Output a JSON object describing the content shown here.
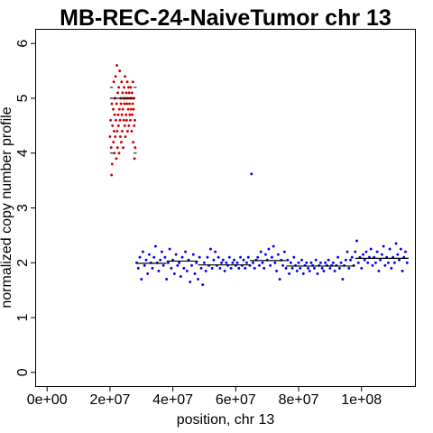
{
  "chart_data": {
    "type": "scatter",
    "title": "MB-REC-24-NaiveTumor chr 13",
    "xlabel": "position, chr 13",
    "ylabel": "normalized copy number profile",
    "xlim": [
      -3500000,
      117000000
    ],
    "ylim": [
      -0.25,
      6.25
    ],
    "x_ticks": [
      0,
      20000000,
      40000000,
      60000000,
      80000000,
      100000000
    ],
    "x_tick_labels": [
      "0e+00",
      "2e+07",
      "4e+07",
      "6e+07",
      "8e+07",
      "1e+08"
    ],
    "y_ticks": [
      0,
      1,
      2,
      3,
      4,
      5,
      6
    ],
    "y_tick_labels": [
      "0",
      "1",
      "2",
      "3",
      "4",
      "5",
      "6"
    ],
    "grid": false,
    "legend": "none",
    "series": [
      {
        "color": "#cc0000",
        "points": [
          [
            20000000,
            4.3
          ],
          [
            20200000,
            4.6
          ],
          [
            20400000,
            4.1
          ],
          [
            20500000,
            3.6
          ],
          [
            20600000,
            4.9
          ],
          [
            20700000,
            3.8
          ],
          [
            20800000,
            4.5
          ],
          [
            21000000,
            4.8
          ],
          [
            21100000,
            4.2
          ],
          [
            21200000,
            5.3
          ],
          [
            21300000,
            4.4
          ],
          [
            21400000,
            4.0
          ],
          [
            21500000,
            4.7
          ],
          [
            21600000,
            5.0
          ],
          [
            21700000,
            4.3
          ],
          [
            21800000,
            5.4
          ],
          [
            21900000,
            4.6
          ],
          [
            22000000,
            3.9
          ],
          [
            22100000,
            4.9
          ],
          [
            22200000,
            5.6
          ],
          [
            22300000,
            4.4
          ],
          [
            22400000,
            4.1
          ],
          [
            22500000,
            5.1
          ],
          [
            22600000,
            4.7
          ],
          [
            22700000,
            4.5
          ],
          [
            22800000,
            5.2
          ],
          [
            22900000,
            4.0
          ],
          [
            23000000,
            4.8
          ],
          [
            23100000,
            5.5
          ],
          [
            23200000,
            4.6
          ],
          [
            23300000,
            4.3
          ],
          [
            23400000,
            5.0
          ],
          [
            23500000,
            4.9
          ],
          [
            23600000,
            4.2
          ],
          [
            23700000,
            5.3
          ],
          [
            23800000,
            4.7
          ],
          [
            23900000,
            4.4
          ],
          [
            24000000,
            5.1
          ],
          [
            24100000,
            4.8
          ],
          [
            24200000,
            4.1
          ],
          [
            24300000,
            5.0
          ],
          [
            24400000,
            4.6
          ],
          [
            24500000,
            5.2
          ],
          [
            24600000,
            4.9
          ],
          [
            24700000,
            4.5
          ],
          [
            24800000,
            5.4
          ],
          [
            24900000,
            4.3
          ],
          [
            25000000,
            5.0
          ],
          [
            25100000,
            4.7
          ],
          [
            25200000,
            5.1
          ],
          [
            25300000,
            4.6
          ],
          [
            25400000,
            4.9
          ],
          [
            25500000,
            5.3
          ],
          [
            25600000,
            4.4
          ],
          [
            25700000,
            5.0
          ],
          [
            25800000,
            4.8
          ],
          [
            25900000,
            5.2
          ],
          [
            26000000,
            4.5
          ],
          [
            26100000,
            5.1
          ],
          [
            26200000,
            4.9
          ],
          [
            26300000,
            4.7
          ],
          [
            26400000,
            5.0
          ],
          [
            26500000,
            4.6
          ],
          [
            26600000,
            5.2
          ],
          [
            26700000,
            4.8
          ],
          [
            26800000,
            5.0
          ],
          [
            26900000,
            4.4
          ],
          [
            27000000,
            5.1
          ],
          [
            27100000,
            4.7
          ],
          [
            27200000,
            4.9
          ],
          [
            27300000,
            5.3
          ],
          [
            27400000,
            4.2
          ],
          [
            27500000,
            4.8
          ],
          [
            27600000,
            5.0
          ],
          [
            27700000,
            4.5
          ],
          [
            27800000,
            3.9
          ],
          [
            27900000,
            4.6
          ],
          [
            28000000,
            4.1
          ]
        ]
      },
      {
        "color": "#0000ee",
        "points": [
          [
            28500000,
            2.0
          ],
          [
            29000000,
            1.9
          ],
          [
            29500000,
            2.1
          ],
          [
            30000000,
            1.7
          ],
          [
            30500000,
            2.2
          ],
          [
            31000000,
            1.95
          ],
          [
            31500000,
            2.05
          ],
          [
            32000000,
            1.8
          ],
          [
            32500000,
            2.15
          ],
          [
            33000000,
            2.0
          ],
          [
            33500000,
            1.9
          ],
          [
            34000000,
            2.1
          ],
          [
            34500000,
            2.3
          ],
          [
            35000000,
            2.0
          ],
          [
            35500000,
            1.85
          ],
          [
            36000000,
            2.05
          ],
          [
            36500000,
            2.2
          ],
          [
            37000000,
            1.95
          ],
          [
            37500000,
            2.1
          ],
          [
            38000000,
            1.7
          ],
          [
            38500000,
            2.0
          ],
          [
            39000000,
            2.25
          ],
          [
            39500000,
            1.9
          ],
          [
            40000000,
            2.05
          ],
          [
            40500000,
            1.8
          ],
          [
            41000000,
            2.15
          ],
          [
            41500000,
            1.95
          ],
          [
            42000000,
            2.0
          ],
          [
            42500000,
            1.75
          ],
          [
            43000000,
            2.1
          ],
          [
            43500000,
            1.9
          ],
          [
            44000000,
            2.2
          ],
          [
            44500000,
            1.85
          ],
          [
            45000000,
            2.05
          ],
          [
            45500000,
            1.65
          ],
          [
            46000000,
            1.95
          ],
          [
            46500000,
            2.15
          ],
          [
            47000000,
            1.8
          ],
          [
            47500000,
            2.0
          ],
          [
            48000000,
            1.7
          ],
          [
            48500000,
            2.1
          ],
          [
            49000000,
            1.9
          ],
          [
            49500000,
            1.6
          ],
          [
            50000000,
            2.0
          ],
          [
            50500000,
            1.85
          ],
          [
            51000000,
            2.1
          ],
          [
            51500000,
            1.95
          ],
          [
            52000000,
            2.25
          ],
          [
            52500000,
            1.9
          ],
          [
            53000000,
            2.05
          ],
          [
            53500000,
            2.2
          ],
          [
            54000000,
            1.95
          ],
          [
            54500000,
            2.1
          ],
          [
            55000000,
            1.9
          ],
          [
            55500000,
            2.0
          ],
          [
            56000000,
            2.05
          ],
          [
            56500000,
            1.85
          ],
          [
            57000000,
            2.0
          ],
          [
            57500000,
            1.95
          ],
          [
            58000000,
            2.1
          ],
          [
            58500000,
            1.9
          ],
          [
            59000000,
            2.0
          ],
          [
            59500000,
            2.05
          ],
          [
            60000000,
            1.95
          ],
          [
            60500000,
            2.0
          ],
          [
            61000000,
            1.9
          ],
          [
            61500000,
            2.1
          ],
          [
            62000000,
            1.95
          ],
          [
            62500000,
            2.05
          ],
          [
            63000000,
            1.9
          ],
          [
            63500000,
            2.0
          ],
          [
            64000000,
            2.1
          ],
          [
            64500000,
            1.95
          ],
          [
            65000000,
            3.62
          ],
          [
            65500000,
            2.0
          ],
          [
            66000000,
            1.9
          ],
          [
            66500000,
            2.05
          ],
          [
            67000000,
            2.1
          ],
          [
            67500000,
            1.95
          ],
          [
            68000000,
            2.2
          ],
          [
            68500000,
            2.0
          ],
          [
            69000000,
            1.9
          ],
          [
            69500000,
            2.15
          ],
          [
            70000000,
            2.05
          ],
          [
            70500000,
            2.25
          ],
          [
            71000000,
            1.95
          ],
          [
            71500000,
            2.1
          ],
          [
            72000000,
            2.3
          ],
          [
            72500000,
            2.0
          ],
          [
            73000000,
            1.85
          ],
          [
            73500000,
            2.15
          ],
          [
            74000000,
            1.7
          ],
          [
            74500000,
            2.05
          ],
          [
            75000000,
            1.95
          ],
          [
            75500000,
            2.2
          ],
          [
            76000000,
            1.9
          ],
          [
            76500000,
            2.05
          ],
          [
            77000000,
            1.8
          ],
          [
            77500000,
            2.0
          ],
          [
            78000000,
            1.9
          ],
          [
            78500000,
            2.1
          ],
          [
            79000000,
            1.95
          ],
          [
            79500000,
            1.85
          ],
          [
            80000000,
            2.0
          ],
          [
            80500000,
            1.9
          ],
          [
            81000000,
            2.05
          ],
          [
            81500000,
            1.8
          ],
          [
            82000000,
            1.95
          ],
          [
            82500000,
            2.0
          ],
          [
            83000000,
            1.9
          ],
          [
            83500000,
            1.85
          ],
          [
            84000000,
            2.0
          ],
          [
            84500000,
            1.95
          ],
          [
            85000000,
            1.9
          ],
          [
            85500000,
            2.05
          ],
          [
            86000000,
            1.8
          ],
          [
            86500000,
            1.95
          ],
          [
            87000000,
            2.0
          ],
          [
            87500000,
            1.9
          ],
          [
            88000000,
            1.85
          ],
          [
            88500000,
            2.0
          ],
          [
            89000000,
            1.95
          ],
          [
            89500000,
            2.05
          ],
          [
            90000000,
            1.9
          ],
          [
            90500000,
            1.95
          ],
          [
            91000000,
            2.0
          ],
          [
            91500000,
            1.85
          ],
          [
            92000000,
            1.95
          ],
          [
            92500000,
            2.1
          ],
          [
            93000000,
            1.9
          ],
          [
            93500000,
            2.0
          ],
          [
            94000000,
            1.7
          ],
          [
            94500000,
            1.95
          ],
          [
            95000000,
            2.05
          ],
          [
            95500000,
            2.2
          ],
          [
            96000000,
            1.9
          ],
          [
            96500000,
            2.05
          ],
          [
            97000000,
            2.1
          ],
          [
            97500000,
            1.95
          ],
          [
            98000000,
            2.2
          ],
          [
            98500000,
            2.4
          ],
          [
            99000000,
            2.0
          ],
          [
            99500000,
            2.1
          ],
          [
            100000000,
            1.9
          ],
          [
            100500000,
            2.15
          ],
          [
            101000000,
            2.05
          ],
          [
            101500000,
            2.2
          ],
          [
            102000000,
            2.0
          ],
          [
            102500000,
            2.1
          ],
          [
            103000000,
            2.25
          ],
          [
            103500000,
            1.95
          ],
          [
            104000000,
            2.1
          ],
          [
            104500000,
            2.0
          ],
          [
            105000000,
            2.2
          ],
          [
            105500000,
            1.85
          ],
          [
            106000000,
            2.05
          ],
          [
            106500000,
            2.15
          ],
          [
            107000000,
            2.3
          ],
          [
            107500000,
            1.95
          ],
          [
            108000000,
            2.1
          ],
          [
            108500000,
            2.0
          ],
          [
            109000000,
            2.25
          ],
          [
            109500000,
            1.9
          ],
          [
            110000000,
            2.1
          ],
          [
            110500000,
            2.0
          ],
          [
            111000000,
            2.35
          ],
          [
            111500000,
            2.15
          ],
          [
            112000000,
            2.05
          ],
          [
            112500000,
            2.25
          ],
          [
            113000000,
            1.85
          ],
          [
            113500000,
            2.1
          ],
          [
            114000000,
            2.2
          ],
          [
            114500000,
            2.0
          ]
        ]
      }
    ],
    "segments": [
      {
        "x0": 20000000,
        "x1": 28000000,
        "y": 5.0,
        "color": "#000000"
      },
      {
        "x0": 28500000,
        "x1": 38000000,
        "y": 1.99,
        "color": "#000000"
      },
      {
        "x0": 38000000,
        "x1": 48000000,
        "y": 2.03,
        "color": "#000000"
      },
      {
        "x0": 48000000,
        "x1": 64500000,
        "y": 1.96,
        "color": "#000000"
      },
      {
        "x0": 64500000,
        "x1": 76000000,
        "y": 2.04,
        "color": "#000000"
      },
      {
        "x0": 76000000,
        "x1": 98000000,
        "y": 1.94,
        "color": "#000000"
      },
      {
        "x0": 98000000,
        "x1": 115000000,
        "y": 2.08,
        "color": "#000000"
      }
    ],
    "segment_bounds": [
      {
        "x0": 20000000,
        "x1": 21000000,
        "y": 4.0
      },
      {
        "x0": 27500000,
        "x1": 28500000,
        "y": 4.0
      },
      {
        "x0": 20000000,
        "x1": 21000000,
        "y": 5.2
      },
      {
        "x0": 27500000,
        "x1": 28500000,
        "y": 5.2
      }
    ]
  }
}
